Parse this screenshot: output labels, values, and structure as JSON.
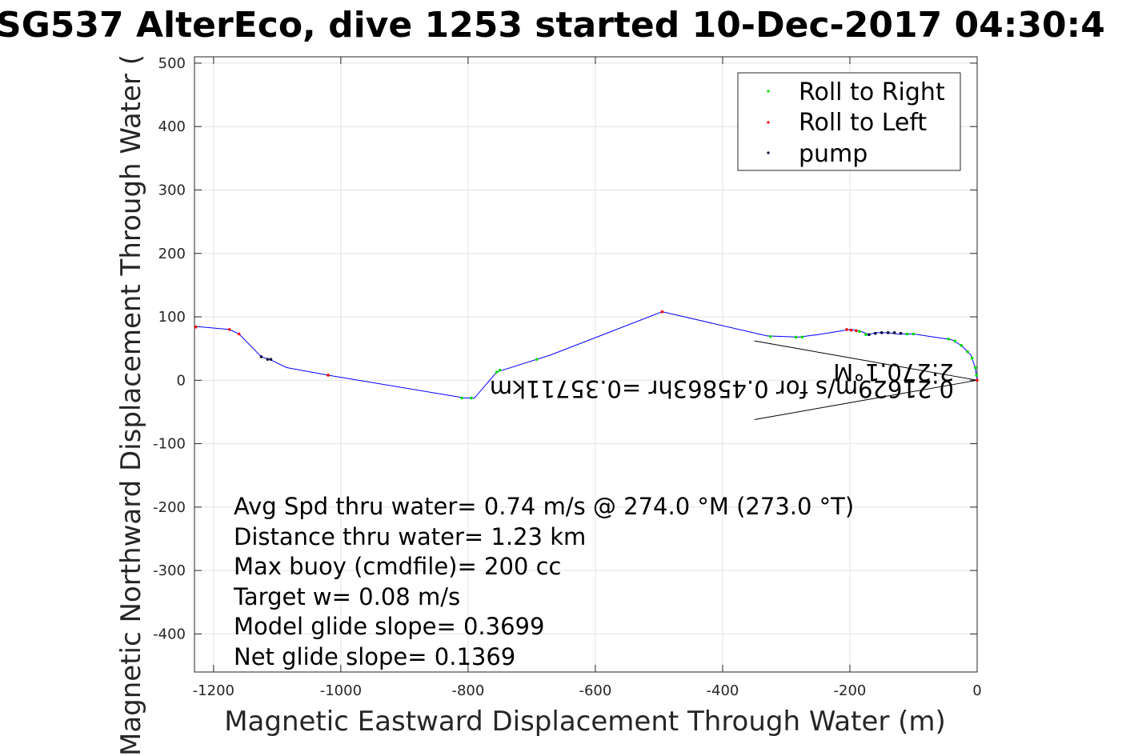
{
  "chart_data": {
    "type": "line",
    "title": "SG537 AlterEco, dive 1253 started 10-Dec-2017 04:30:4",
    "xlabel": "Magnetic Eastward Displacement Through Water (m)",
    "ylabel": "Magnetic Northward Displacement Through Water (",
    "xlim": [
      -1230,
      0
    ],
    "ylim": [
      -460,
      510
    ],
    "xticks": [
      -1200,
      -1000,
      -800,
      -600,
      -400,
      -200,
      0
    ],
    "yticks": [
      500,
      400,
      300,
      200,
      100,
      0,
      -100,
      -200,
      -300,
      -400
    ],
    "grid": true,
    "track": {
      "color": "#0000ff",
      "points": [
        [
          -1230,
          85
        ],
        [
          -1175,
          80
        ],
        [
          -1160,
          73
        ],
        [
          -1125,
          37
        ],
        [
          -1110,
          32
        ],
        [
          -1085,
          20
        ],
        [
          -1020,
          8
        ],
        [
          -805,
          -28
        ],
        [
          -790,
          -28
        ],
        [
          -755,
          13
        ],
        [
          -670,
          40
        ],
        [
          -495,
          108
        ],
        [
          -330,
          70
        ],
        [
          -280,
          68
        ],
        [
          -250,
          72
        ],
        [
          -200,
          80
        ],
        [
          -185,
          78
        ],
        [
          -170,
          72
        ],
        [
          -160,
          75
        ],
        [
          -140,
          75
        ],
        [
          -125,
          73
        ],
        [
          -100,
          73
        ],
        [
          -80,
          70
        ],
        [
          -40,
          64
        ],
        [
          -25,
          55
        ],
        [
          -10,
          40
        ],
        [
          -3,
          20
        ],
        [
          0,
          0
        ]
      ]
    },
    "series": [
      {
        "name": "Roll to Right",
        "color": "#00dd00",
        "points": [
          [
            -810,
            -28
          ],
          [
            -795,
            -28
          ],
          [
            -755,
            13
          ],
          [
            -750,
            16
          ],
          [
            -692,
            33
          ],
          [
            -325,
            69
          ],
          [
            -285,
            68
          ],
          [
            -275,
            68
          ],
          [
            -185,
            77
          ],
          [
            -175,
            72
          ],
          [
            -110,
            73
          ],
          [
            -100,
            73
          ],
          [
            -45,
            65
          ],
          [
            -35,
            62
          ],
          [
            -25,
            55
          ],
          [
            -15,
            45
          ],
          [
            -8,
            35
          ],
          [
            -3,
            20
          ],
          [
            -1,
            8
          ]
        ]
      },
      {
        "name": "Roll to Left",
        "color": "#ff0000",
        "points": [
          [
            -1228,
            84
          ],
          [
            -1175,
            80
          ],
          [
            -1160,
            73
          ],
          [
            -1020,
            8
          ],
          [
            -495,
            108
          ],
          [
            -205,
            80
          ],
          [
            -198,
            79
          ],
          [
            -190,
            78
          ],
          [
            0,
            0
          ]
        ]
      },
      {
        "name": "pump",
        "color": "#000033",
        "points": [
          [
            -1125,
            37
          ],
          [
            -1115,
            33
          ],
          [
            -1110,
            33
          ],
          [
            -170,
            72
          ],
          [
            -160,
            74
          ],
          [
            -150,
            75
          ],
          [
            -140,
            75
          ],
          [
            -130,
            75
          ],
          [
            -120,
            74
          ]
        ]
      }
    ],
    "current_lines": [
      [
        [
          0,
          0
        ],
        [
          -350,
          62
        ]
      ],
      [
        [
          0,
          0
        ],
        [
          -350,
          -62
        ]
      ]
    ],
    "legend": {
      "placement": "top-right",
      "entries": [
        "Roll to Right",
        "Roll to Left",
        "pump"
      ]
    },
    "annotations": {
      "stats": [
        "Avg Spd thru water=  0.74 m/s @ 274.0 °M (273.0 °T)",
        "Distance thru water=  1.23 km",
        "Max buoy (cmdfile)= 200 cc",
        "Target w= 0.08 m/s",
        "Model glide slope= 0.3699",
        "Net glide slope= 0.1369"
      ],
      "flipped": [
        "0.21629m/s for 0.45863hr =0.35711km",
        "2:270.1°M"
      ]
    }
  }
}
